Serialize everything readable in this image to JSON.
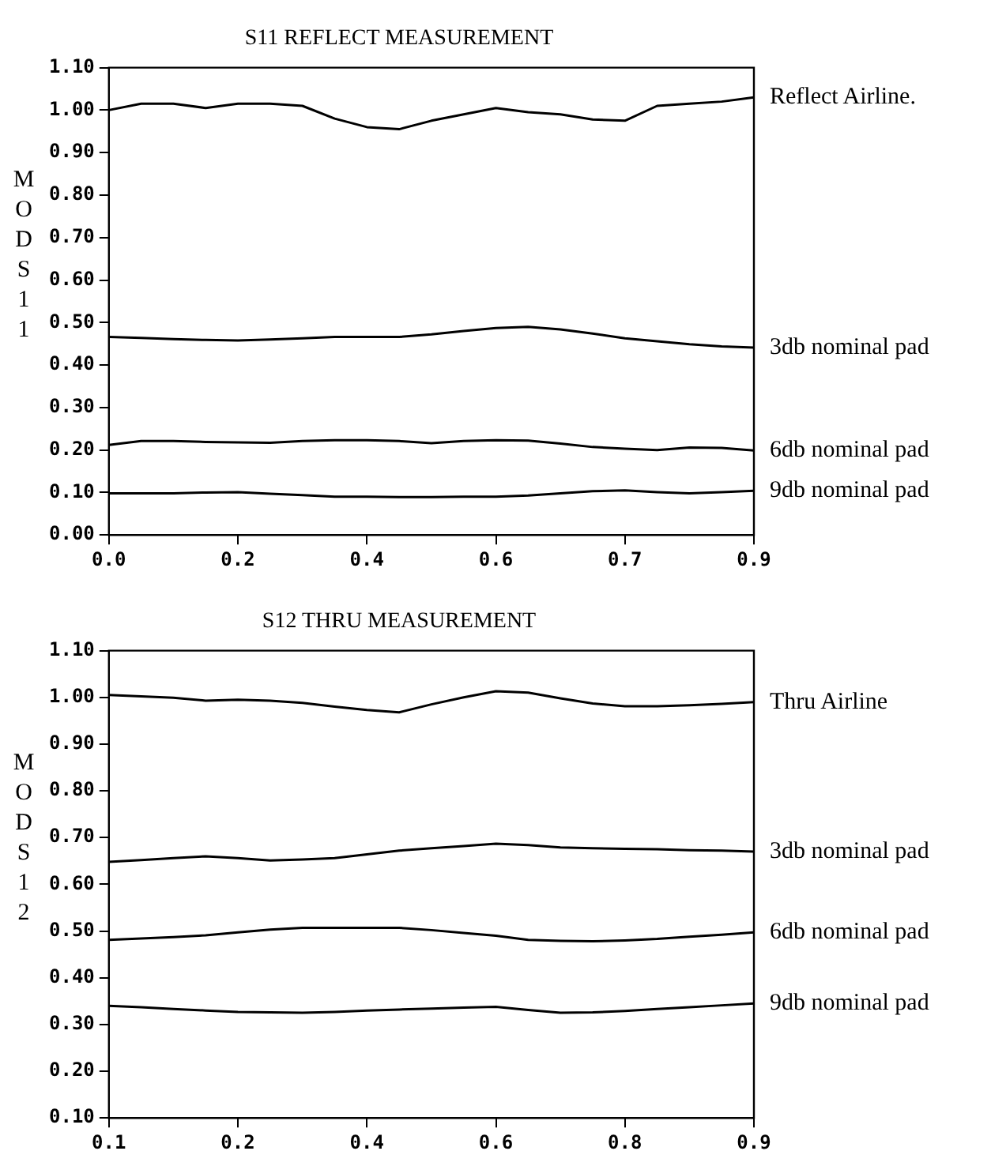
{
  "chart_data": [
    {
      "type": "line",
      "title": "S11 REFLECT MEASUREMENT",
      "ylabel": "MOD S11",
      "categories": [
        "0.0",
        null,
        null,
        null,
        "0.2",
        null,
        null,
        null,
        "0.4",
        null,
        null,
        null,
        "0.6",
        null,
        null,
        null,
        "0.7",
        null,
        null,
        null,
        "0.9"
      ],
      "ylim": [
        0,
        1.1
      ],
      "yticks": [
        {
          "value": 0,
          "label": "0.00"
        },
        {
          "value": 0.1,
          "label": "0.10"
        },
        {
          "value": 0.2,
          "label": "0.20"
        },
        {
          "value": 0.3,
          "label": "0.30"
        },
        {
          "value": 0.4,
          "label": "0.40"
        },
        {
          "value": 0.5,
          "label": "0.50"
        },
        {
          "value": 0.6,
          "label": "0.60"
        },
        {
          "value": 0.7,
          "label": "0.70"
        },
        {
          "value": 0.8,
          "label": "0.80"
        },
        {
          "value": 0.9,
          "label": "0.90"
        },
        {
          "value": 1,
          "label": "1.00"
        },
        {
          "value": 1.1,
          "label": "1.10"
        }
      ],
      "grid": false,
      "legend": false,
      "marker": "none",
      "line_style": "solid",
      "series": [
        {
          "name": "Reflect Airline.",
          "color": "#000000",
          "values": [
            1.0,
            1.015,
            1.015,
            1.005,
            1.015,
            1.015,
            1.01,
            0.98,
            0.96,
            0.955,
            0.975,
            0.99,
            1.005,
            0.995,
            0.99,
            0.978,
            0.975,
            1.01,
            1.015,
            1.02,
            1.03
          ]
        },
        {
          "name": "3db nominal pad",
          "color": "#000000",
          "values": [
            0.466,
            0.464,
            0.461,
            0.459,
            0.458,
            0.46,
            0.463,
            0.466,
            0.466,
            0.466,
            0.472,
            0.48,
            0.487,
            0.49,
            0.484,
            0.474,
            0.463,
            0.456,
            0.449,
            0.444,
            0.441
          ]
        },
        {
          "name": "6db nominal pad",
          "color": "#000000",
          "values": [
            0.212,
            0.221,
            0.221,
            0.219,
            0.218,
            0.217,
            0.221,
            0.223,
            0.223,
            0.221,
            0.216,
            0.221,
            0.223,
            0.222,
            0.215,
            0.207,
            0.203,
            0.2,
            0.206,
            0.205,
            0.199
          ]
        },
        {
          "name": "9db nominal pad",
          "color": "#000000",
          "values": [
            0.098,
            0.098,
            0.098,
            0.1,
            0.101,
            0.097,
            0.094,
            0.09,
            0.09,
            0.089,
            0.089,
            0.09,
            0.09,
            0.093,
            0.098,
            0.103,
            0.105,
            0.101,
            0.098,
            0.101,
            0.104
          ]
        }
      ]
    },
    {
      "type": "line",
      "title": "S12 THRU MEASUREMENT",
      "ylabel": "MOD S12",
      "categories": [
        "0.1",
        null,
        null,
        null,
        "0.2",
        null,
        null,
        null,
        "0.4",
        null,
        null,
        null,
        "0.6",
        null,
        null,
        null,
        "0.8",
        null,
        null,
        null,
        "0.9"
      ],
      "ylim": [
        0.1,
        1.1
      ],
      "yticks": [
        {
          "value": 0.1,
          "label": "0.10"
        },
        {
          "value": 0.2,
          "label": "0.20"
        },
        {
          "value": 0.3,
          "label": "0.30"
        },
        {
          "value": 0.4,
          "label": "0.40"
        },
        {
          "value": 0.5,
          "label": "0.50"
        },
        {
          "value": 0.6,
          "label": "0.60"
        },
        {
          "value": 0.7,
          "label": "0.70"
        },
        {
          "value": 0.8,
          "label": "0.80"
        },
        {
          "value": 0.9,
          "label": "0.90"
        },
        {
          "value": 1,
          "label": "1.00"
        },
        {
          "value": 1.1,
          "label": "1.10"
        }
      ],
      "grid": false,
      "legend": false,
      "marker": "none",
      "line_style": "solid",
      "series": [
        {
          "name": "Thru Airline",
          "color": "#000000",
          "values": [
            1.005,
            1.002,
            0.999,
            0.993,
            0.995,
            0.993,
            0.988,
            0.98,
            0.973,
            0.968,
            0.985,
            1.0,
            1.013,
            1.01,
            0.998,
            0.987,
            0.981,
            0.981,
            0.983,
            0.986,
            0.99
          ]
        },
        {
          "name": "3db nominal pad",
          "color": "#000000",
          "values": [
            0.648,
            0.652,
            0.656,
            0.66,
            0.656,
            0.651,
            0.653,
            0.656,
            0.664,
            0.672,
            0.677,
            0.682,
            0.687,
            0.684,
            0.679,
            0.677,
            0.676,
            0.675,
            0.673,
            0.672,
            0.67
          ]
        },
        {
          "name": "6db nominal pad",
          "color": "#000000",
          "values": [
            0.481,
            0.484,
            0.487,
            0.491,
            0.497,
            0.503,
            0.507,
            0.507,
            0.507,
            0.507,
            0.502,
            0.496,
            0.49,
            0.481,
            0.479,
            0.478,
            0.48,
            0.483,
            0.488,
            0.492,
            0.497
          ]
        },
        {
          "name": "9db nominal pad",
          "color": "#000000",
          "values": [
            0.34,
            0.337,
            0.333,
            0.33,
            0.327,
            0.326,
            0.325,
            0.327,
            0.33,
            0.332,
            0.334,
            0.336,
            0.338,
            0.331,
            0.325,
            0.326,
            0.329,
            0.333,
            0.337,
            0.341,
            0.345
          ]
        }
      ]
    }
  ]
}
